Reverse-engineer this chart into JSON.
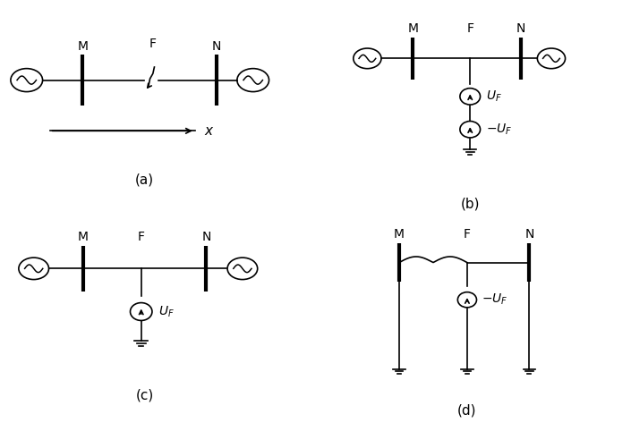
{
  "fig_width": 7.05,
  "fig_height": 4.82,
  "dpi": 100,
  "bg_color": "#ffffff",
  "line_color": "#000000",
  "font_size": 10,
  "label_fontsize": 11,
  "panels": {
    "a_label": "(a)",
    "b_label": "(b)",
    "c_label": "(c)",
    "d_label": "(d)"
  }
}
